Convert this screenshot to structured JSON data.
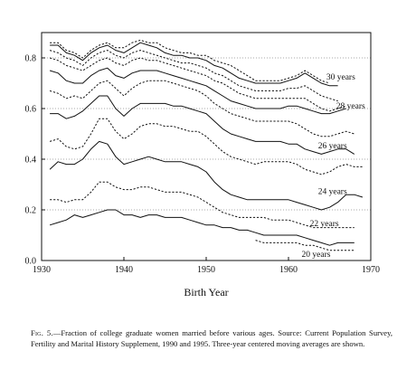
{
  "chart_data": {
    "type": "line",
    "xlabel": "Birth Year",
    "ylabel": "",
    "xlim": [
      1930,
      1970
    ],
    "ylim": [
      0,
      0.9
    ],
    "xticks": [
      1930,
      1940,
      1950,
      1960,
      1970
    ],
    "yticks": [
      0.0,
      0.2,
      0.4,
      0.6,
      0.8
    ],
    "ytick_labels": [
      "0.0",
      "0.2",
      "0.4",
      "0.6",
      "0.8"
    ],
    "grid": "dotted horizontal",
    "x": [
      1931,
      1932,
      1933,
      1934,
      1935,
      1936,
      1937,
      1938,
      1939,
      1940,
      1941,
      1942,
      1943,
      1944,
      1945,
      1946,
      1947,
      1948,
      1949,
      1950,
      1951,
      1952,
      1953,
      1954,
      1955,
      1956,
      1957,
      1958,
      1959,
      1960,
      1961,
      1962,
      1963,
      1964,
      1965,
      1966,
      1967,
      1968,
      1969
    ],
    "series": [
      {
        "name": "",
        "style": "dashed",
        "values": [
          0.86,
          0.86,
          0.83,
          0.82,
          0.8,
          0.83,
          0.85,
          0.86,
          0.84,
          0.84,
          0.86,
          0.87,
          0.86,
          0.86,
          0.84,
          0.83,
          0.82,
          0.82,
          0.81,
          0.81,
          0.79,
          0.78,
          0.77,
          0.75,
          0.73,
          0.71,
          0.71,
          0.71,
          0.71,
          0.72,
          0.73,
          0.75,
          0.73,
          0.71,
          0.7,
          null,
          null,
          null,
          null
        ]
      },
      {
        "name": "30 years",
        "style": "solid",
        "values": [
          0.85,
          0.85,
          0.82,
          0.81,
          0.79,
          0.82,
          0.84,
          0.85,
          0.83,
          0.82,
          0.84,
          0.86,
          0.85,
          0.84,
          0.82,
          0.81,
          0.81,
          0.8,
          0.8,
          0.79,
          0.77,
          0.76,
          0.74,
          0.72,
          0.71,
          0.7,
          0.7,
          0.7,
          0.7,
          0.71,
          0.72,
          0.74,
          0.72,
          0.7,
          0.69,
          0.69,
          null,
          null,
          null
        ]
      },
      {
        "name": "",
        "style": "dashed",
        "values": [
          0.83,
          0.82,
          0.8,
          0.79,
          0.77,
          0.8,
          0.82,
          0.83,
          0.81,
          0.8,
          0.82,
          0.83,
          0.82,
          0.81,
          0.8,
          0.79,
          0.78,
          0.78,
          0.77,
          0.76,
          0.74,
          0.73,
          0.71,
          0.69,
          0.68,
          0.67,
          0.67,
          0.67,
          0.67,
          0.68,
          0.68,
          0.69,
          0.67,
          0.65,
          0.64,
          0.63,
          null,
          null,
          null
        ]
      },
      {
        "name": "",
        "style": "dashed",
        "values": [
          0.8,
          0.79,
          0.77,
          0.76,
          0.75,
          0.77,
          0.79,
          0.8,
          0.78,
          0.77,
          0.79,
          0.8,
          0.79,
          0.79,
          0.78,
          0.77,
          0.76,
          0.75,
          0.74,
          0.73,
          0.71,
          0.7,
          0.68,
          0.66,
          0.65,
          0.64,
          0.64,
          0.64,
          0.64,
          0.64,
          0.64,
          0.64,
          0.62,
          0.6,
          0.59,
          0.6,
          0.61,
          null,
          null
        ]
      },
      {
        "name": "28 years",
        "style": "solid",
        "values": [
          0.75,
          0.74,
          0.71,
          0.7,
          0.7,
          0.73,
          0.75,
          0.76,
          0.73,
          0.72,
          0.74,
          0.75,
          0.75,
          0.75,
          0.74,
          0.73,
          0.72,
          0.71,
          0.7,
          0.69,
          0.67,
          0.65,
          0.63,
          0.62,
          0.61,
          0.6,
          0.6,
          0.6,
          0.6,
          0.61,
          0.61,
          0.6,
          0.59,
          0.58,
          0.58,
          0.59,
          0.6,
          null,
          null
        ]
      },
      {
        "name": "",
        "style": "dashed",
        "values": [
          0.67,
          0.66,
          0.64,
          0.65,
          0.64,
          0.67,
          0.7,
          0.71,
          0.68,
          0.65,
          0.68,
          0.7,
          0.71,
          0.71,
          0.71,
          0.7,
          0.69,
          0.68,
          0.67,
          0.65,
          0.62,
          0.6,
          0.58,
          0.57,
          0.56,
          0.55,
          0.55,
          0.55,
          0.55,
          0.55,
          0.54,
          0.52,
          0.5,
          0.49,
          0.49,
          0.5,
          0.51,
          0.5,
          null
        ]
      },
      {
        "name": "",
        "style": "solid",
        "values": [
          0.58,
          0.58,
          0.56,
          0.57,
          0.59,
          0.62,
          0.65,
          0.65,
          0.6,
          0.57,
          0.6,
          0.62,
          0.62,
          0.62,
          0.62,
          0.61,
          0.61,
          0.6,
          0.59,
          0.58,
          0.55,
          0.52,
          0.5,
          0.49,
          0.48,
          0.47,
          0.47,
          0.47,
          0.47,
          0.46,
          0.46,
          0.44,
          0.43,
          0.42,
          0.43,
          0.44,
          0.44,
          0.42,
          null
        ]
      },
      {
        "name": "26 years",
        "style": "dashed",
        "values": [
          0.47,
          0.48,
          0.45,
          0.44,
          0.45,
          0.5,
          0.56,
          0.56,
          0.51,
          0.48,
          0.5,
          0.53,
          0.54,
          0.54,
          0.53,
          0.53,
          0.52,
          0.51,
          0.51,
          0.49,
          0.46,
          0.43,
          0.41,
          0.4,
          0.39,
          0.38,
          0.39,
          0.39,
          0.39,
          0.39,
          0.38,
          0.36,
          0.35,
          0.34,
          0.35,
          0.37,
          0.38,
          0.37,
          0.37
        ]
      },
      {
        "name": "",
        "style": "solid",
        "values": [
          0.36,
          0.39,
          0.38,
          0.38,
          0.4,
          0.44,
          0.47,
          0.46,
          0.41,
          0.38,
          0.39,
          0.4,
          0.41,
          0.4,
          0.39,
          0.39,
          0.39,
          0.38,
          0.37,
          0.35,
          0.31,
          0.28,
          0.26,
          0.25,
          0.24,
          0.24,
          0.24,
          0.24,
          0.24,
          0.24,
          0.23,
          0.22,
          0.21,
          0.2,
          0.21,
          0.23,
          0.26,
          0.26,
          0.25
        ]
      },
      {
        "name": "24 years",
        "style": "dashed",
        "values": [
          0.24,
          0.24,
          0.23,
          0.24,
          0.24,
          0.27,
          0.31,
          0.31,
          0.29,
          0.28,
          0.28,
          0.29,
          0.29,
          0.28,
          0.27,
          0.27,
          0.27,
          0.26,
          0.25,
          0.23,
          0.21,
          0.19,
          0.18,
          0.17,
          0.17,
          0.17,
          0.17,
          0.16,
          0.16,
          0.16,
          0.15,
          0.14,
          0.13,
          0.13,
          0.13,
          0.13,
          0.13,
          0.13,
          null
        ]
      },
      {
        "name": "22 years",
        "style": "solid",
        "values": [
          0.14,
          0.15,
          0.16,
          0.18,
          0.17,
          0.18,
          0.19,
          0.2,
          0.2,
          0.18,
          0.18,
          0.17,
          0.18,
          0.18,
          0.17,
          0.17,
          0.17,
          0.16,
          0.15,
          0.14,
          0.14,
          0.13,
          0.13,
          0.12,
          0.12,
          0.11,
          0.1,
          0.1,
          0.1,
          0.1,
          0.1,
          0.09,
          0.08,
          0.07,
          0.06,
          0.07,
          0.07,
          0.07,
          null
        ]
      },
      {
        "name": "20 years",
        "style": "dashed",
        "values": [
          null,
          null,
          null,
          null,
          null,
          null,
          null,
          null,
          null,
          null,
          null,
          null,
          null,
          null,
          null,
          null,
          null,
          null,
          null,
          null,
          null,
          null,
          null,
          null,
          null,
          0.08,
          0.07,
          0.07,
          0.07,
          0.07,
          0.07,
          0.06,
          0.06,
          0.05,
          0.04,
          0.04,
          0.04,
          0.04,
          null
        ]
      }
    ],
    "line_labels": [
      {
        "text": "30 years",
        "x": 1964.6,
        "y": 0.714
      },
      {
        "text": "28 years",
        "x": 1965.8,
        "y": 0.6
      },
      {
        "text": "26 years",
        "x": 1963.6,
        "y": 0.443
      },
      {
        "text": "24 years",
        "x": 1963.6,
        "y": 0.263
      },
      {
        "text": "22 years",
        "x": 1962.6,
        "y": 0.135
      },
      {
        "text": "20 years",
        "x": 1961.6,
        "y": 0.015
      }
    ]
  },
  "caption": {
    "label": "Fig. 5.",
    "text": "—Fraction of college graduate women married before various ages. Source: Current Population Survey, Fertility and Marital History Supplement, 1990 and 1995. Three-year centered moving averages are shown."
  }
}
